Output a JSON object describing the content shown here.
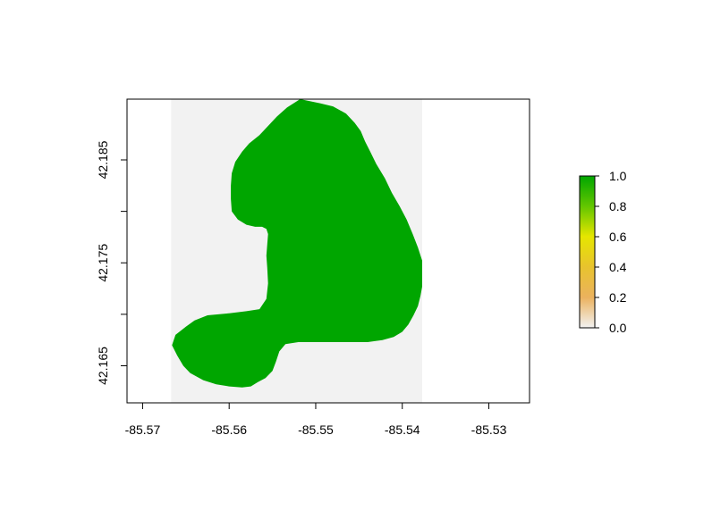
{
  "chart_data": {
    "type": "heatmap",
    "title": "",
    "xlabel": "",
    "ylabel": "",
    "xlim": [
      -85.5718,
      -85.5253
    ],
    "ylim": [
      42.1614,
      42.1909
    ],
    "x_ticks": [
      {
        "value": -85.57,
        "label": "-85.57"
      },
      {
        "value": -85.56,
        "label": "-85.56"
      },
      {
        "value": -85.55,
        "label": "-85.55"
      },
      {
        "value": -85.54,
        "label": "-85.54"
      },
      {
        "value": -85.53,
        "label": "-85.53"
      }
    ],
    "y_ticks": [
      {
        "value": 42.165,
        "label": "42.165"
      },
      {
        "value": 42.17,
        "label": ""
      },
      {
        "value": 42.175,
        "label": "42.175"
      },
      {
        "value": 42.18,
        "label": ""
      },
      {
        "value": 42.185,
        "label": "42.185"
      }
    ],
    "raster_extent": {
      "xmin": -85.5667,
      "xmax": -85.5377,
      "ymin": 42.1614,
      "ymax": 42.1909
    },
    "raster_background_value": 0,
    "raster_background_color": "#f2f2f2",
    "region": {
      "value": 1,
      "color": "#00a600",
      "outline": [
        [
          -85.5518,
          42.1909
        ],
        [
          -85.5495,
          42.1905
        ],
        [
          -85.548,
          42.1902
        ],
        [
          -85.5465,
          42.1895
        ],
        [
          -85.5455,
          42.1886
        ],
        [
          -85.5448,
          42.1878
        ],
        [
          -85.5443,
          42.1868
        ],
        [
          -85.5437,
          42.1858
        ],
        [
          -85.543,
          42.1846
        ],
        [
          -85.542,
          42.1832
        ],
        [
          -85.5412,
          42.1818
        ],
        [
          -85.5403,
          42.1805
        ],
        [
          -85.5395,
          42.1792
        ],
        [
          -85.5388,
          42.1778
        ],
        [
          -85.5382,
          42.1765
        ],
        [
          -85.5377,
          42.1752
        ],
        [
          -85.5377,
          42.174
        ],
        [
          -85.5377,
          42.1727
        ],
        [
          -85.5379,
          42.1718
        ],
        [
          -85.5382,
          42.1708
        ],
        [
          -85.5387,
          42.1699
        ],
        [
          -85.5393,
          42.169
        ],
        [
          -85.54,
          42.1683
        ],
        [
          -85.541,
          42.1678
        ],
        [
          -85.5423,
          42.1675
        ],
        [
          -85.544,
          42.1673
        ],
        [
          -85.546,
          42.1673
        ],
        [
          -85.548,
          42.1673
        ],
        [
          -85.55,
          42.1673
        ],
        [
          -85.552,
          42.1673
        ],
        [
          -85.5535,
          42.1671
        ],
        [
          -85.5542,
          42.1664
        ],
        [
          -85.5546,
          42.1654
        ],
        [
          -85.555,
          42.1645
        ],
        [
          -85.5558,
          42.1638
        ],
        [
          -85.5567,
          42.1634
        ],
        [
          -85.5575,
          42.163
        ],
        [
          -85.5585,
          42.1629
        ],
        [
          -85.56,
          42.163
        ],
        [
          -85.5615,
          42.1632
        ],
        [
          -85.563,
          42.1636
        ],
        [
          -85.5645,
          42.1643
        ],
        [
          -85.5653,
          42.165
        ],
        [
          -85.566,
          42.166
        ],
        [
          -85.5666,
          42.167
        ],
        [
          -85.5662,
          42.168
        ],
        [
          -85.565,
          42.1688
        ],
        [
          -85.564,
          42.1694
        ],
        [
          -85.5625,
          42.1699
        ],
        [
          -85.56,
          42.1701
        ],
        [
          -85.558,
          42.1703
        ],
        [
          -85.5565,
          42.1705
        ],
        [
          -85.5557,
          42.1715
        ],
        [
          -85.5555,
          42.173
        ],
        [
          -85.5556,
          42.1745
        ],
        [
          -85.5557,
          42.1757
        ],
        [
          -85.5556,
          42.1768
        ],
        [
          -85.5555,
          42.1778
        ],
        [
          -85.5557,
          42.1783
        ],
        [
          -85.5562,
          42.1785
        ],
        [
          -85.557,
          42.1785
        ],
        [
          -85.558,
          42.1787
        ],
        [
          -85.559,
          42.1792
        ],
        [
          -85.5597,
          42.18
        ],
        [
          -85.5598,
          42.1812
        ],
        [
          -85.5598,
          42.1825
        ],
        [
          -85.5597,
          42.1837
        ],
        [
          -85.5593,
          42.1848
        ],
        [
          -85.5585,
          42.1858
        ],
        [
          -85.5577,
          42.1866
        ],
        [
          -85.5565,
          42.1874
        ],
        [
          -85.5555,
          42.1883
        ],
        [
          -85.5545,
          42.1892
        ],
        [
          -85.5533,
          42.1901
        ],
        [
          -85.5518,
          42.1909
        ]
      ]
    },
    "legend": {
      "position": "right",
      "zlim": [
        0,
        1
      ],
      "ticks": [
        {
          "value": 0.0,
          "label": "0.0"
        },
        {
          "value": 0.2,
          "label": "0.2"
        },
        {
          "value": 0.4,
          "label": "0.4"
        },
        {
          "value": 0.6,
          "label": "0.6"
        },
        {
          "value": 0.8,
          "label": "0.8"
        },
        {
          "value": 1.0,
          "label": "1.0"
        }
      ],
      "color_stops": [
        {
          "value": 0.0,
          "color": "#f2f2f2"
        },
        {
          "value": 0.2,
          "color": "#ebb25e"
        },
        {
          "value": 0.4,
          "color": "#e8c32e"
        },
        {
          "value": 0.6,
          "color": "#e6e600"
        },
        {
          "value": 0.8,
          "color": "#63c600"
        },
        {
          "value": 1.0,
          "color": "#00a600"
        }
      ]
    }
  }
}
